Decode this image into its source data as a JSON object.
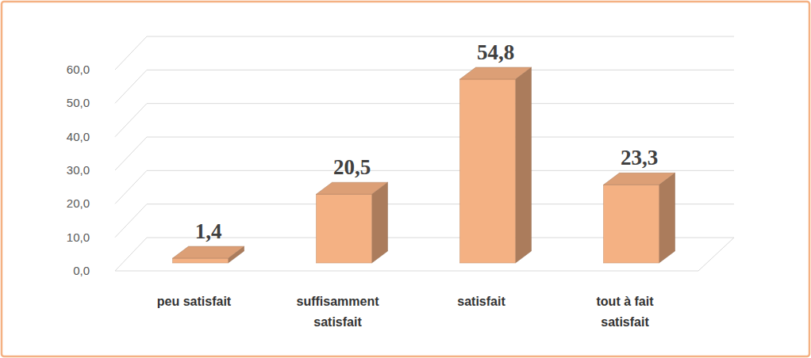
{
  "chart_data": {
    "type": "bar",
    "categories": [
      "peu satisfait",
      "suffisamment satisfait",
      "satisfait",
      "tout à fait satisfait"
    ],
    "values": [
      1.4,
      20.5,
      54.8,
      23.3
    ],
    "value_labels": [
      "1,4",
      "20,5",
      "54,8",
      "23,3"
    ],
    "color": "#f4b183",
    "ylim": [
      0,
      60
    ],
    "yticks": [
      {
        "value": 0,
        "label": "0,0"
      },
      {
        "value": 10,
        "label": "10,0"
      },
      {
        "value": 20,
        "label": "20,0"
      },
      {
        "value": 30,
        "label": "30,0"
      },
      {
        "value": 40,
        "label": "40,0"
      },
      {
        "value": 50,
        "label": "50,0"
      },
      {
        "value": 60,
        "label": "60,0"
      }
    ],
    "grid": true,
    "data_labels": true
  }
}
